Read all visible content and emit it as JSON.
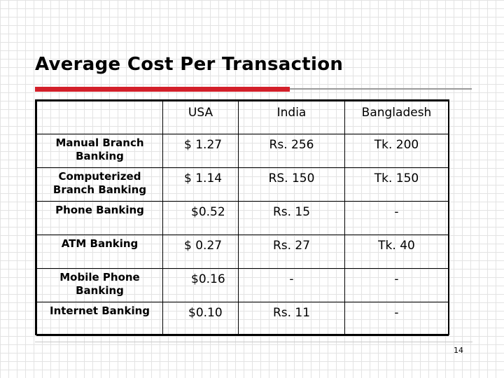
{
  "slide": {
    "title": "Average Cost Per Transaction",
    "page_number": "14"
  },
  "table": {
    "headers": [
      "",
      "USA",
      "India",
      "Bangladesh"
    ],
    "rows": [
      {
        "label": "Manual Branch Banking",
        "usa": "$ 1.27",
        "india": "Rs. 256",
        "bangladesh": "Tk. 200"
      },
      {
        "label": "Computerized Branch Banking",
        "usa": "$ 1.14",
        "india": "RS. 150",
        "bangladesh": "Tk. 150"
      },
      {
        "label": "Phone Banking",
        "usa": "$0.52",
        "india": "Rs. 15",
        "bangladesh": "-"
      },
      {
        "label": "ATM Banking",
        "usa": "$ 0.27",
        "india": "Rs. 27",
        "bangladesh": "Tk. 40"
      },
      {
        "label": "Mobile Phone Banking",
        "usa": "$0.16",
        "india": "-",
        "bangladesh": "-"
      },
      {
        "label": "Internet Banking",
        "usa": "$0.10",
        "india": "Rs. 11",
        "bangladesh": "-"
      }
    ]
  },
  "colors": {
    "accent_rule": "#d3202a",
    "secondary_rule": "#9a9a9a"
  }
}
